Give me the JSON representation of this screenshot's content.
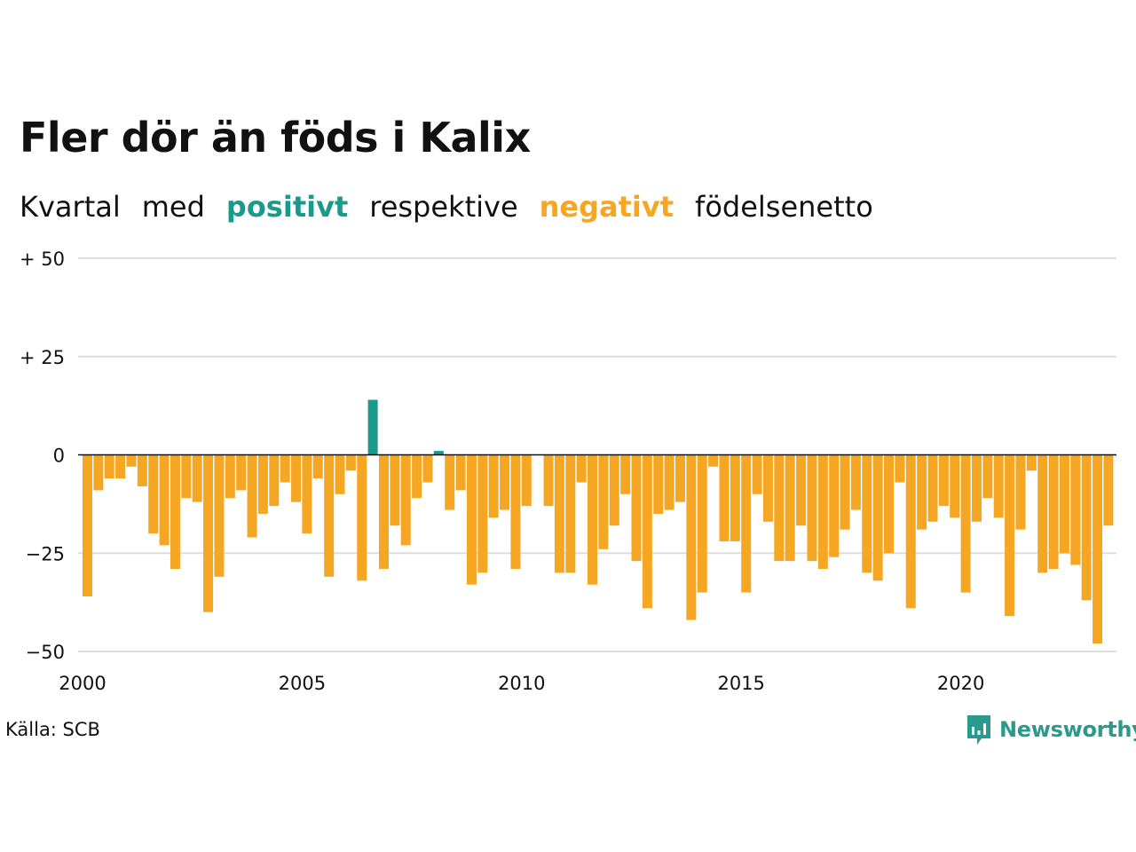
{
  "header": {
    "title": "Fler dör än föds i Kalix",
    "subtitle": {
      "part1": "Kvartal",
      "part2": "med",
      "positive": "positivt",
      "part3": "respektive",
      "negative": "negativt",
      "part4": "födelsenetto"
    }
  },
  "footer": {
    "source": "Källa: SCB",
    "brand": "Newsworthy"
  },
  "colors": {
    "positive": "#1a9a8a",
    "negative": "#f5a623",
    "grid": "#dddddd",
    "brand": "#2a9a8c"
  },
  "chart_data": {
    "type": "bar",
    "title": "Fler dör än föds i Kalix",
    "subtitle": "Kvartal med positivt respektive negativt födelsenetto",
    "xlabel": "",
    "ylabel": "",
    "ylim": [
      -50,
      50
    ],
    "y_ticks": [
      {
        "value": 50,
        "label": "+ 50"
      },
      {
        "value": 25,
        "label": "+ 25"
      },
      {
        "value": 0,
        "label": "0"
      },
      {
        "value": -25,
        "label": "−25"
      },
      {
        "value": -50,
        "label": "−50"
      }
    ],
    "x_ticks": [
      "2000",
      "2005",
      "2010",
      "2015",
      "2020"
    ],
    "start": "2000-Q1",
    "grid": true,
    "values": [
      -36,
      -9,
      -6,
      -6,
      -3,
      -8,
      -20,
      -23,
      -29,
      -11,
      -12,
      -40,
      -31,
      -11,
      -9,
      -21,
      -15,
      -13,
      -7,
      -12,
      -20,
      -6,
      -31,
      -10,
      -4,
      -32,
      14,
      -29,
      -18,
      -23,
      -11,
      -7,
      1,
      -14,
      -9,
      -33,
      -30,
      -16,
      -14,
      -29,
      -13,
      0,
      -13,
      -30,
      -30,
      -7,
      -33,
      -24,
      -18,
      -10,
      -27,
      -39,
      -15,
      -14,
      -12,
      -42,
      -35,
      -3,
      -22,
      -22,
      -35,
      -10,
      -17,
      -27,
      -27,
      -18,
      -27,
      -29,
      -26,
      -19,
      -14,
      -30,
      -32,
      -25,
      -7,
      -39,
      -19,
      -17,
      -13,
      -16,
      -35,
      -17,
      -11,
      -16,
      -41,
      -19,
      -4,
      -30,
      -29,
      -25,
      -28,
      -37,
      -48,
      -18
    ]
  }
}
